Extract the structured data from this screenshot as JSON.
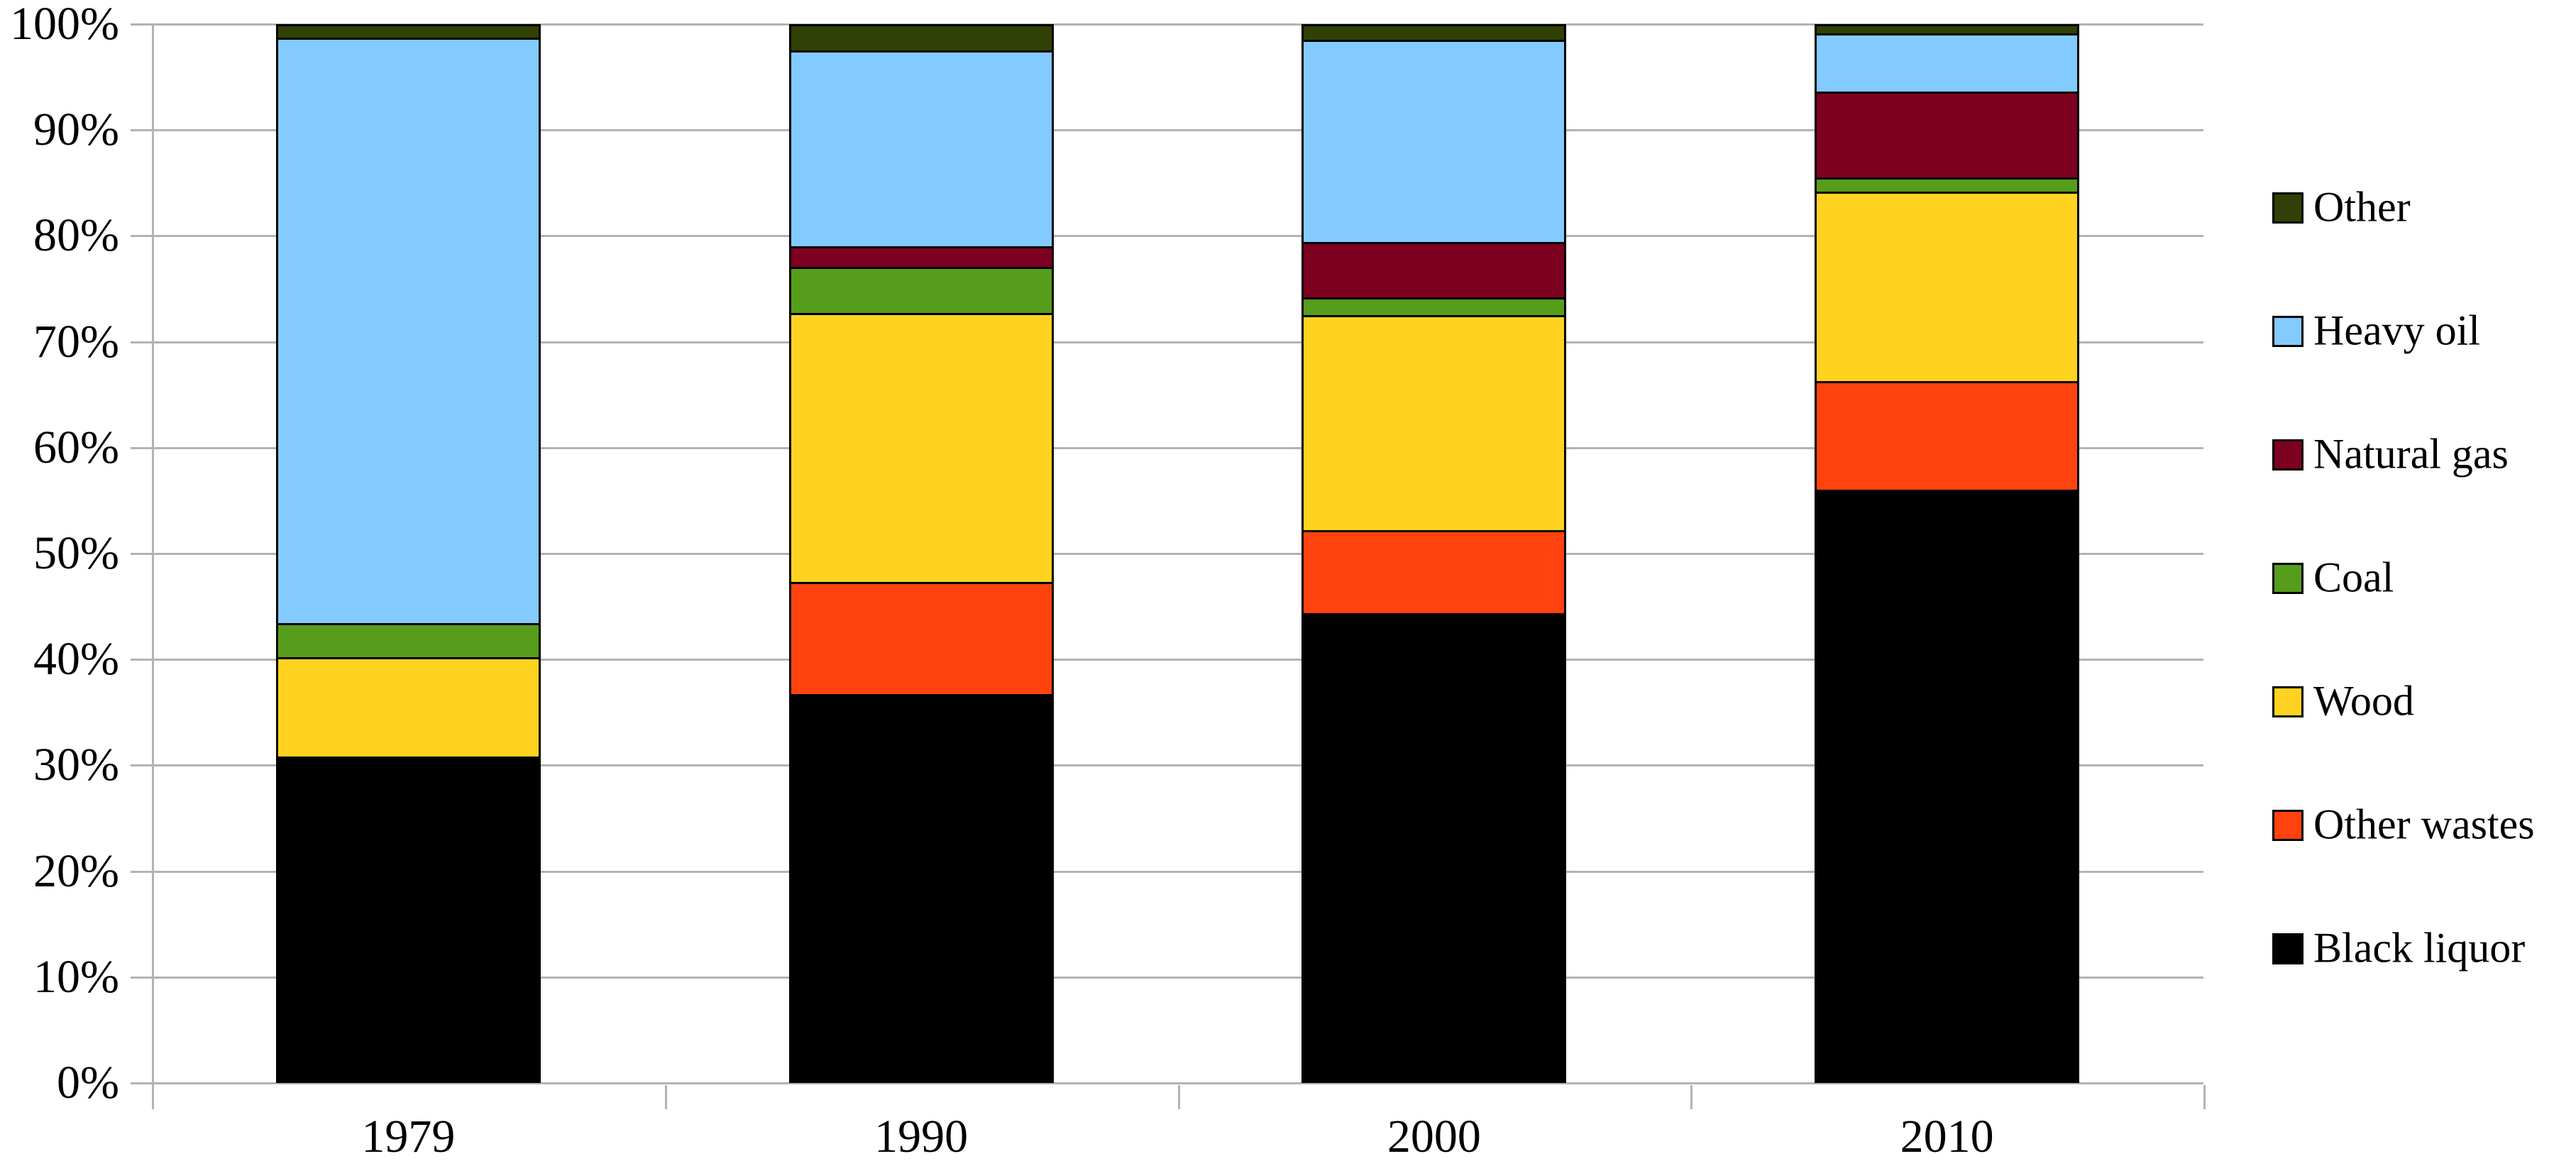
{
  "chart_data": {
    "type": "bar",
    "stacked": true,
    "title": "",
    "xlabel": "",
    "ylabel": "",
    "categories": [
      "1979",
      "1990",
      "2000",
      "2010"
    ],
    "series": [
      {
        "name": "Black liquor",
        "color": "#000000",
        "values": [
          30.8,
          36.7,
          44.4,
          56.0
        ]
      },
      {
        "name": "Other wastes",
        "color": "#FF420E",
        "values": [
          0,
          10.6,
          7.8,
          10.3
        ]
      },
      {
        "name": "Wood",
        "color": "#FFD320",
        "values": [
          9.4,
          25.4,
          20.3,
          17.9
        ]
      },
      {
        "name": "Coal",
        "color": "#579D1C",
        "values": [
          3.2,
          4.4,
          1.7,
          1.3
        ]
      },
      {
        "name": "Natural gas",
        "color": "#7E0021",
        "values": [
          0,
          1.9,
          5.2,
          8.1
        ]
      },
      {
        "name": "Heavy oil",
        "color": "#83CAFF",
        "values": [
          55.3,
          18.5,
          19.1,
          5.5
        ]
      },
      {
        "name": "Other",
        "color": "#314004",
        "values": [
          1.3,
          2.5,
          1.5,
          0.9
        ]
      }
    ],
    "y_axis": {
      "min": 0,
      "max": 100,
      "ticks": [
        "0%",
        "10%",
        "20%",
        "30%",
        "40%",
        "50%",
        "60%",
        "70%",
        "80%",
        "90%",
        "100%"
      ],
      "grid": true
    },
    "legend": {
      "position": "right",
      "order_top_to_bottom": [
        "Other",
        "Heavy oil",
        "Natural gas",
        "Coal",
        "Wood",
        "Other wastes",
        "Black liquor"
      ]
    },
    "style": {
      "gridline_color": "#b3b3b3",
      "axis_color": "#b3b3b3",
      "segment_border_color": "#000000",
      "background": "#ffffff"
    }
  }
}
